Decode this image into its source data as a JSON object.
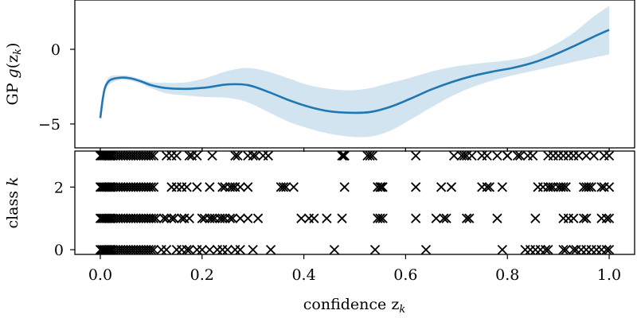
{
  "chart_data": [
    {
      "type": "line",
      "ylabel": {
        "prefix": "GP ",
        "func": "g",
        "open": "(z",
        "sub": "k",
        "close": ")"
      },
      "xlim": [
        -0.05,
        1.05
      ],
      "ylim": [
        -6.6,
        3.3
      ],
      "yticks": [
        -5,
        0
      ],
      "ytick_labels": [
        "−5",
        "0"
      ],
      "grid": false,
      "series": [
        {
          "role": "mean",
          "color": "#1f77b4",
          "x": [
            0.0,
            0.005,
            0.01,
            0.02,
            0.04,
            0.06,
            0.08,
            0.1,
            0.13,
            0.17,
            0.21,
            0.25,
            0.29,
            0.33,
            0.37,
            0.41,
            0.45,
            0.49,
            0.53,
            0.57,
            0.61,
            0.65,
            0.69,
            0.73,
            0.77,
            0.81,
            0.85,
            0.89,
            0.93,
            0.97,
            1.0
          ],
          "y": [
            -4.6,
            -3.3,
            -2.5,
            -2.05,
            -1.9,
            -1.95,
            -2.15,
            -2.4,
            -2.6,
            -2.65,
            -2.55,
            -2.35,
            -2.4,
            -2.85,
            -3.4,
            -3.85,
            -4.15,
            -4.25,
            -4.2,
            -3.85,
            -3.3,
            -2.7,
            -2.2,
            -1.8,
            -1.5,
            -1.25,
            -0.9,
            -0.4,
            0.2,
            0.85,
            1.3
          ]
        },
        {
          "role": "confidence-band",
          "color": "#1f77b4",
          "x": [
            0.0,
            0.005,
            0.01,
            0.02,
            0.04,
            0.06,
            0.08,
            0.1,
            0.13,
            0.17,
            0.21,
            0.25,
            0.29,
            0.33,
            0.37,
            0.41,
            0.45,
            0.49,
            0.53,
            0.57,
            0.61,
            0.65,
            0.69,
            0.73,
            0.77,
            0.81,
            0.85,
            0.89,
            0.93,
            0.97,
            1.0
          ],
          "lower": [
            -4.85,
            -3.55,
            -2.75,
            -2.3,
            -2.05,
            -2.1,
            -2.3,
            -2.6,
            -2.95,
            -3.1,
            -3.2,
            -3.25,
            -3.55,
            -4.2,
            -4.85,
            -5.3,
            -5.65,
            -5.85,
            -5.85,
            -5.45,
            -4.7,
            -3.9,
            -3.15,
            -2.55,
            -2.1,
            -1.75,
            -1.45,
            -1.15,
            -0.85,
            -0.55,
            -0.35
          ],
          "upper": [
            -4.35,
            -3.05,
            -2.25,
            -1.8,
            -1.75,
            -1.8,
            -2.0,
            -2.2,
            -2.25,
            -2.2,
            -1.9,
            -1.45,
            -1.25,
            -1.5,
            -1.95,
            -2.4,
            -2.65,
            -2.75,
            -2.6,
            -2.25,
            -1.9,
            -1.5,
            -1.2,
            -1.0,
            -0.85,
            -0.7,
            -0.4,
            0.25,
            1.1,
            2.2,
            2.9
          ]
        }
      ]
    },
    {
      "type": "scatter",
      "marker": "x",
      "xlabel": {
        "text": "confidence z",
        "sub": "k"
      },
      "ylabel": {
        "text": "class ",
        "var": "k"
      },
      "xlim": [
        -0.05,
        1.05
      ],
      "ylim": [
        -0.15,
        3.15
      ],
      "xticks": [
        0.0,
        0.2,
        0.4,
        0.6,
        0.8,
        1.0
      ],
      "xtick_labels": [
        "0.0",
        "0.2",
        "0.4",
        "0.6",
        "0.8",
        "1.0"
      ],
      "yticks": [
        0,
        2
      ],
      "ytick_labels": [
        "0",
        "2"
      ],
      "grid": false,
      "series": [
        {
          "class": 3,
          "x": [
            0.0,
            0.003,
            0.006,
            0.009,
            0.012,
            0.015,
            0.018,
            0.021,
            0.025,
            0.03,
            0.035,
            0.04,
            0.045,
            0.05,
            0.055,
            0.06,
            0.065,
            0.07,
            0.075,
            0.08,
            0.085,
            0.09,
            0.095,
            0.1,
            0.105,
            0.13,
            0.14,
            0.15,
            0.175,
            0.18,
            0.19,
            0.22,
            0.265,
            0.27,
            0.29,
            0.3,
            0.305,
            0.32,
            0.33,
            0.475,
            0.478,
            0.48,
            0.525,
            0.53,
            0.535,
            0.62,
            0.695,
            0.71,
            0.715,
            0.72,
            0.73,
            0.75,
            0.76,
            0.78,
            0.8,
            0.8,
            0.82,
            0.825,
            0.84,
            0.85,
            0.88,
            0.89,
            0.9,
            0.91,
            0.92,
            0.93,
            0.94,
            0.955,
            0.97,
            0.99,
            1.0
          ]
        },
        {
          "class": 2,
          "x": [
            0.0,
            0.003,
            0.006,
            0.009,
            0.012,
            0.015,
            0.018,
            0.021,
            0.025,
            0.03,
            0.035,
            0.04,
            0.045,
            0.05,
            0.055,
            0.06,
            0.065,
            0.07,
            0.075,
            0.08,
            0.085,
            0.09,
            0.095,
            0.1,
            0.105,
            0.14,
            0.15,
            0.16,
            0.17,
            0.19,
            0.215,
            0.24,
            0.245,
            0.255,
            0.26,
            0.265,
            0.275,
            0.29,
            0.355,
            0.36,
            0.365,
            0.38,
            0.48,
            0.545,
            0.55,
            0.552,
            0.555,
            0.62,
            0.67,
            0.69,
            0.75,
            0.76,
            0.765,
            0.79,
            0.86,
            0.87,
            0.88,
            0.885,
            0.89,
            0.9,
            0.905,
            0.91,
            0.915,
            0.95,
            0.955,
            0.96,
            0.965,
            0.985,
            0.99,
            1.0
          ]
        },
        {
          "class": 1,
          "x": [
            0.0,
            0.003,
            0.006,
            0.009,
            0.012,
            0.015,
            0.018,
            0.021,
            0.025,
            0.03,
            0.035,
            0.04,
            0.045,
            0.05,
            0.055,
            0.06,
            0.065,
            0.07,
            0.075,
            0.08,
            0.085,
            0.09,
            0.095,
            0.1,
            0.105,
            0.11,
            0.125,
            0.13,
            0.14,
            0.145,
            0.16,
            0.165,
            0.175,
            0.2,
            0.205,
            0.215,
            0.22,
            0.225,
            0.235,
            0.24,
            0.245,
            0.255,
            0.26,
            0.275,
            0.29,
            0.31,
            0.395,
            0.41,
            0.42,
            0.445,
            0.475,
            0.545,
            0.55,
            0.555,
            0.62,
            0.66,
            0.675,
            0.68,
            0.72,
            0.725,
            0.78,
            0.855,
            0.91,
            0.92,
            0.93,
            0.95,
            0.955,
            0.985,
            0.995,
            1.0
          ]
        },
        {
          "class": 0,
          "x": [
            0.0,
            0.003,
            0.006,
            0.009,
            0.012,
            0.015,
            0.018,
            0.021,
            0.025,
            0.03,
            0.035,
            0.04,
            0.045,
            0.05,
            0.055,
            0.06,
            0.065,
            0.07,
            0.075,
            0.08,
            0.085,
            0.09,
            0.095,
            0.1,
            0.105,
            0.12,
            0.13,
            0.15,
            0.16,
            0.17,
            0.175,
            0.19,
            0.2,
            0.215,
            0.23,
            0.24,
            0.25,
            0.265,
            0.275,
            0.3,
            0.335,
            0.46,
            0.54,
            0.64,
            0.79,
            0.835,
            0.845,
            0.855,
            0.865,
            0.875,
            0.88,
            0.91,
            0.915,
            0.93,
            0.935,
            0.945,
            0.955,
            0.965,
            0.975,
            0.985,
            0.995,
            1.0
          ]
        }
      ]
    }
  ]
}
